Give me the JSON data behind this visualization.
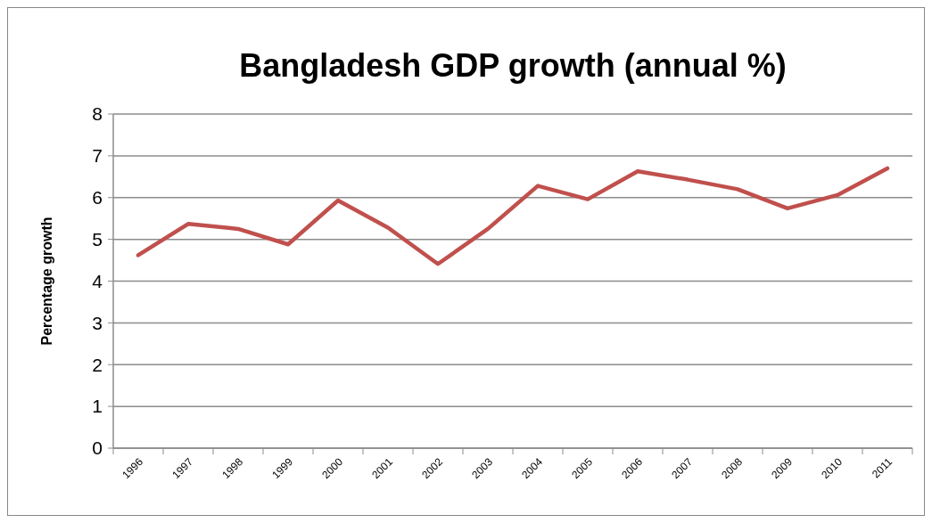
{
  "chart_data": {
    "type": "line",
    "title": "Bangladesh GDP growth (annual %)",
    "ylabel": "Percentage growth",
    "categories": [
      "1996",
      "1997",
      "1998",
      "1999",
      "2000",
      "2001",
      "2002",
      "2003",
      "2004",
      "2005",
      "2006",
      "2007",
      "2008",
      "2009",
      "2010",
      "2011"
    ],
    "series": [
      {
        "color": "#c0504d",
        "values": [
          4.62,
          5.37,
          5.25,
          4.88,
          5.93,
          5.28,
          4.41,
          5.25,
          6.28,
          5.96,
          6.63,
          6.43,
          6.2,
          5.74,
          6.06,
          6.7
        ]
      }
    ],
    "ylim": [
      0,
      8
    ],
    "yticks": [
      0,
      1,
      2,
      3,
      4,
      5,
      6,
      7,
      8
    ],
    "grid": "y",
    "marker": "none",
    "line_style": "solid"
  }
}
